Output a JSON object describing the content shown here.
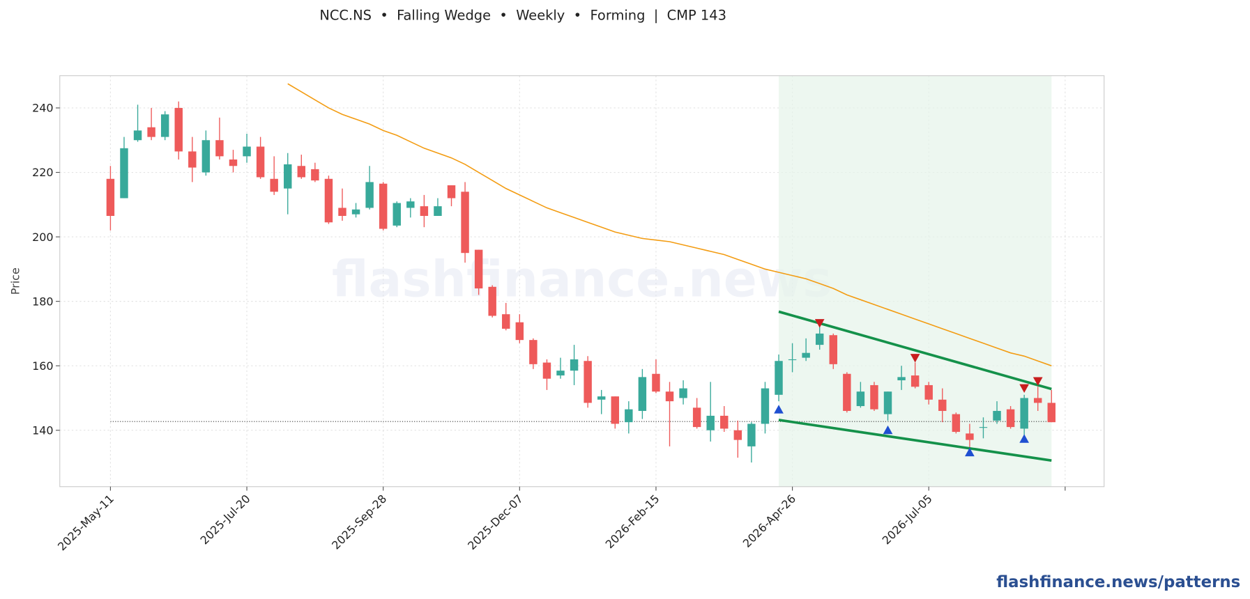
{
  "chart_data": {
    "type": "candlestick",
    "title": "NCC.NS  •  Falling Wedge  •  Weekly  •  Forming  |  CMP 143",
    "ylabel": "Price",
    "watermark": "flashfinance.news",
    "footer": "flashfinance.news/patterns",
    "xlim": [
      "2025-04-15",
      "2026-10-03"
    ],
    "ylim": [
      122.5,
      250
    ],
    "yticks": [
      140,
      160,
      180,
      200,
      220,
      240
    ],
    "xticks": [
      {
        "value": "2025-05-11",
        "label": "2025-May-11"
      },
      {
        "value": "2025-07-20",
        "label": "2025-Jul-20"
      },
      {
        "value": "2025-09-28",
        "label": "2025-Sep-28"
      },
      {
        "value": "2025-12-07",
        "label": "2025-Dec-07"
      },
      {
        "value": "2026-02-15",
        "label": "2026-Feb-15"
      },
      {
        "value": "2026-04-26",
        "label": "2026-Apr-26"
      },
      {
        "value": "2026-07-05",
        "label": "2026-Jul-05"
      },
      {
        "value": "2026-09-13",
        "label": null
      }
    ],
    "grid": true,
    "up_color": "#38a99a",
    "down_color": "#ee5a5a",
    "candles": {
      "x": [
        "2025-05-11",
        "2025-05-18",
        "2025-05-25",
        "2025-06-01",
        "2025-06-08",
        "2025-06-15",
        "2025-06-22",
        "2025-06-29",
        "2025-07-06",
        "2025-07-13",
        "2025-07-20",
        "2025-07-27",
        "2025-08-03",
        "2025-08-10",
        "2025-08-17",
        "2025-08-24",
        "2025-08-31",
        "2025-09-07",
        "2025-09-14",
        "2025-09-21",
        "2025-09-28",
        "2025-10-05",
        "2025-10-12",
        "2025-10-19",
        "2025-10-26",
        "2025-11-02",
        "2025-11-09",
        "2025-11-16",
        "2025-11-23",
        "2025-11-30",
        "2025-12-07",
        "2025-12-14",
        "2025-12-21",
        "2025-12-28",
        "2026-01-04",
        "2026-01-11",
        "2026-01-18",
        "2026-01-25",
        "2026-02-01",
        "2026-02-08",
        "2026-02-15",
        "2026-02-22",
        "2026-03-01",
        "2026-03-08",
        "2026-03-15",
        "2026-03-22",
        "2026-03-29",
        "2026-04-05",
        "2026-04-12",
        "2026-04-19",
        "2026-04-26",
        "2026-05-03",
        "2026-05-10",
        "2026-05-17",
        "2026-05-24",
        "2026-05-31",
        "2026-06-07",
        "2026-06-14",
        "2026-06-21",
        "2026-06-28",
        "2026-07-05",
        "2026-07-12",
        "2026-07-19",
        "2026-07-26",
        "2026-08-02",
        "2026-08-09",
        "2026-08-16",
        "2026-08-23",
        "2026-08-30",
        "2026-09-06"
      ],
      "open": [
        218,
        212,
        230,
        234,
        231,
        240,
        226.5,
        220,
        230,
        224,
        225,
        228,
        218,
        215,
        222,
        221,
        218,
        209,
        207,
        209,
        216.5,
        203.5,
        209,
        209.5,
        206.5,
        216,
        214,
        196,
        184.5,
        176,
        173.5,
        168,
        161,
        157,
        158.5,
        161.5,
        149.5,
        150.5,
        142.5,
        146,
        157.5,
        152,
        150,
        147,
        140,
        144.5,
        140,
        135,
        142,
        151,
        162,
        162.5,
        166.5,
        169.5,
        157.5,
        147.5,
        154,
        145,
        155.5,
        157,
        154,
        149.5,
        145,
        139,
        141,
        143,
        146.5,
        140.5,
        150,
        148.5
      ],
      "high": [
        222,
        231,
        241,
        240,
        239,
        242,
        231,
        233,
        237,
        227,
        232,
        231,
        225,
        226,
        225.5,
        223,
        219,
        215,
        210.5,
        222,
        217,
        211,
        212,
        213,
        212,
        216,
        217,
        196,
        185,
        179.5,
        176,
        168.5,
        162,
        162.5,
        166.5,
        163,
        152.5,
        150.5,
        149,
        159,
        162,
        155,
        155.5,
        150,
        155,
        147.5,
        143,
        142.5,
        155,
        163.5,
        167,
        168.5,
        172.5,
        170,
        158,
        155,
        155,
        152,
        160,
        161,
        155,
        153,
        145.5,
        142,
        144,
        149,
        147.5,
        151,
        153.5,
        152.5
      ],
      "low": [
        202,
        212,
        229.5,
        230,
        230,
        224,
        217,
        219,
        224,
        220,
        223,
        218,
        213,
        207,
        218,
        217,
        204,
        205,
        206,
        208.5,
        202,
        203,
        206,
        203,
        206.5,
        209.5,
        192,
        182,
        175,
        171,
        167,
        159,
        152.5,
        156,
        154,
        147,
        145,
        140.5,
        139,
        143.5,
        151.5,
        135,
        148,
        140.5,
        136.5,
        139.5,
        131.5,
        130,
        139,
        149,
        158,
        161.5,
        165,
        159,
        145.5,
        147,
        146,
        143,
        152.5,
        153,
        148,
        142.5,
        139,
        134.5,
        137.5,
        142,
        140.5,
        138.5,
        146,
        142.5
      ],
      "close": [
        206.5,
        227.5,
        233,
        231,
        238,
        226.5,
        221.5,
        230,
        225,
        222,
        228,
        218.5,
        214,
        222.5,
        218.5,
        217.5,
        204.5,
        206.5,
        208.5,
        217,
        202.5,
        210.5,
        211,
        206.5,
        209.5,
        212,
        195,
        184,
        175.5,
        171.5,
        168,
        160.5,
        156,
        158.5,
        162,
        148.5,
        150.5,
        142,
        146.5,
        156.5,
        152,
        149,
        153,
        141,
        144.5,
        140.5,
        137,
        142,
        153,
        161.5,
        162,
        164,
        170,
        160.5,
        146,
        152,
        146.5,
        152,
        156.5,
        153.5,
        149.5,
        146,
        139.5,
        137,
        141,
        146,
        141,
        150,
        148.5,
        142.5
      ]
    },
    "moving_average": {
      "color": "#f39c12",
      "values": [
        null,
        null,
        null,
        null,
        null,
        null,
        null,
        null,
        null,
        null,
        null,
        null,
        null,
        247.5,
        245,
        242.5,
        240,
        238,
        236.5,
        235,
        233,
        231.5,
        229.5,
        227.5,
        226,
        224.5,
        222.5,
        220,
        217.5,
        215,
        213,
        211,
        209,
        207.5,
        206,
        204.5,
        203,
        201.5,
        200.5,
        199.5,
        199,
        198.5,
        197.5,
        196.5,
        195.5,
        194.5,
        193,
        191.5,
        190,
        189,
        188,
        187,
        185.5,
        184,
        182,
        180.5,
        179,
        177.5,
        176,
        174.5,
        173,
        171.5,
        170,
        168.5,
        167,
        165.5,
        164,
        163,
        161.5,
        160
      ]
    },
    "pattern_range": {
      "color": "#e6f3ea",
      "x": [
        "2026-04-19",
        "2026-09-06"
      ]
    },
    "trendlines": {
      "color": "#14914a",
      "lines": [
        {
          "x": [
            "2026-04-19",
            "2026-09-06"
          ],
          "values": [
            176.8,
            152.8
          ]
        },
        {
          "x": [
            "2026-04-19",
            "2026-09-06"
          ],
          "values": [
            143.2,
            130.6
          ]
        }
      ]
    },
    "cmp_line": {
      "x": [
        "2025-05-11",
        "2026-09-06"
      ],
      "values": [
        142.7,
        142.7
      ]
    },
    "pivot_lows": {
      "color": "#1f4fd1",
      "x": [
        "2026-04-19",
        "2026-06-14",
        "2026-07-26",
        "2026-08-23"
      ],
      "values": [
        146.4,
        140,
        133.1,
        137.3
      ]
    },
    "pivot_highs": {
      "color": "#c81e1e",
      "x": [
        "2026-05-10",
        "2026-06-28",
        "2026-08-23",
        "2026-08-30"
      ],
      "values": [
        173.3,
        162.5,
        153.1,
        155.3
      ]
    }
  }
}
